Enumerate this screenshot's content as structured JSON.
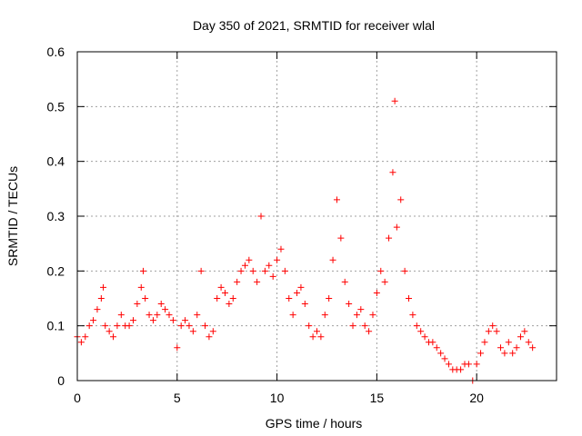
{
  "chart_data": {
    "type": "scatter",
    "title": "Day 350 of 2021, SRMTID for receiver wlal",
    "xlabel": "GPS time / hours",
    "ylabel": "SRMTID / TECUs",
    "xlim": [
      0,
      24
    ],
    "ylim": [
      0,
      0.6
    ],
    "xticks": [
      0,
      5,
      10,
      15,
      20
    ],
    "xtick_labels": [
      "0",
      "5",
      "10",
      "15",
      "20"
    ],
    "yticks": [
      0,
      0.1,
      0.2,
      0.3,
      0.4,
      0.5,
      0.6
    ],
    "ytick_labels": [
      "0",
      "0.1",
      "0.2",
      "0.3",
      "0.4",
      "0.5",
      "0.6"
    ],
    "grid": true,
    "marker": "+",
    "color": "#ff0000",
    "series": [
      {
        "name": "SRMTID",
        "x": [
          0.0,
          0.2,
          0.4,
          0.6,
          0.8,
          1.0,
          1.2,
          1.3,
          1.4,
          1.6,
          1.8,
          2.0,
          2.2,
          2.4,
          2.6,
          2.8,
          3.0,
          3.2,
          3.3,
          3.4,
          3.6,
          3.8,
          4.0,
          4.2,
          4.4,
          4.6,
          4.8,
          5.0,
          5.2,
          5.4,
          5.6,
          5.8,
          6.0,
          6.2,
          6.4,
          6.6,
          6.8,
          7.0,
          7.2,
          7.4,
          7.6,
          7.8,
          8.0,
          8.2,
          8.4,
          8.6,
          8.8,
          9.0,
          9.2,
          9.4,
          9.6,
          9.8,
          10.0,
          10.2,
          10.4,
          10.6,
          10.8,
          11.0,
          11.2,
          11.4,
          11.6,
          11.8,
          12.0,
          12.2,
          12.4,
          12.6,
          12.8,
          13.0,
          13.2,
          13.4,
          13.6,
          13.8,
          14.0,
          14.2,
          14.4,
          14.6,
          14.8,
          15.0,
          15.2,
          15.4,
          15.6,
          15.8,
          15.9,
          16.0,
          16.2,
          16.4,
          16.6,
          16.8,
          17.0,
          17.2,
          17.4,
          17.6,
          17.8,
          18.0,
          18.2,
          18.4,
          18.6,
          18.8,
          19.0,
          19.2,
          19.4,
          19.6,
          19.8,
          20.0,
          20.2,
          20.4,
          20.6,
          20.8,
          21.0,
          21.2,
          21.4,
          21.6,
          21.8,
          22.0,
          22.2,
          22.4,
          22.6,
          22.8
        ],
        "y": [
          0.08,
          0.07,
          0.08,
          0.1,
          0.11,
          0.13,
          0.15,
          0.17,
          0.1,
          0.09,
          0.08,
          0.1,
          0.12,
          0.1,
          0.1,
          0.11,
          0.14,
          0.17,
          0.2,
          0.15,
          0.12,
          0.11,
          0.12,
          0.14,
          0.13,
          0.12,
          0.11,
          0.06,
          0.1,
          0.11,
          0.1,
          0.09,
          0.12,
          0.2,
          0.1,
          0.08,
          0.09,
          0.15,
          0.17,
          0.16,
          0.14,
          0.15,
          0.18,
          0.2,
          0.21,
          0.22,
          0.2,
          0.18,
          0.3,
          0.2,
          0.21,
          0.19,
          0.22,
          0.24,
          0.2,
          0.15,
          0.12,
          0.16,
          0.17,
          0.14,
          0.1,
          0.08,
          0.09,
          0.08,
          0.12,
          0.15,
          0.22,
          0.33,
          0.26,
          0.18,
          0.14,
          0.1,
          0.12,
          0.13,
          0.1,
          0.09,
          0.12,
          0.16,
          0.2,
          0.18,
          0.26,
          0.38,
          0.51,
          0.28,
          0.33,
          0.2,
          0.15,
          0.12,
          0.1,
          0.09,
          0.08,
          0.07,
          0.07,
          0.06,
          0.05,
          0.04,
          0.03,
          0.02,
          0.02,
          0.02,
          0.03,
          0.03,
          0.0,
          0.03,
          0.05,
          0.07,
          0.09,
          0.1,
          0.09,
          0.06,
          0.05,
          0.07,
          0.05,
          0.06,
          0.08,
          0.09,
          0.07,
          0.06
        ]
      }
    ]
  }
}
